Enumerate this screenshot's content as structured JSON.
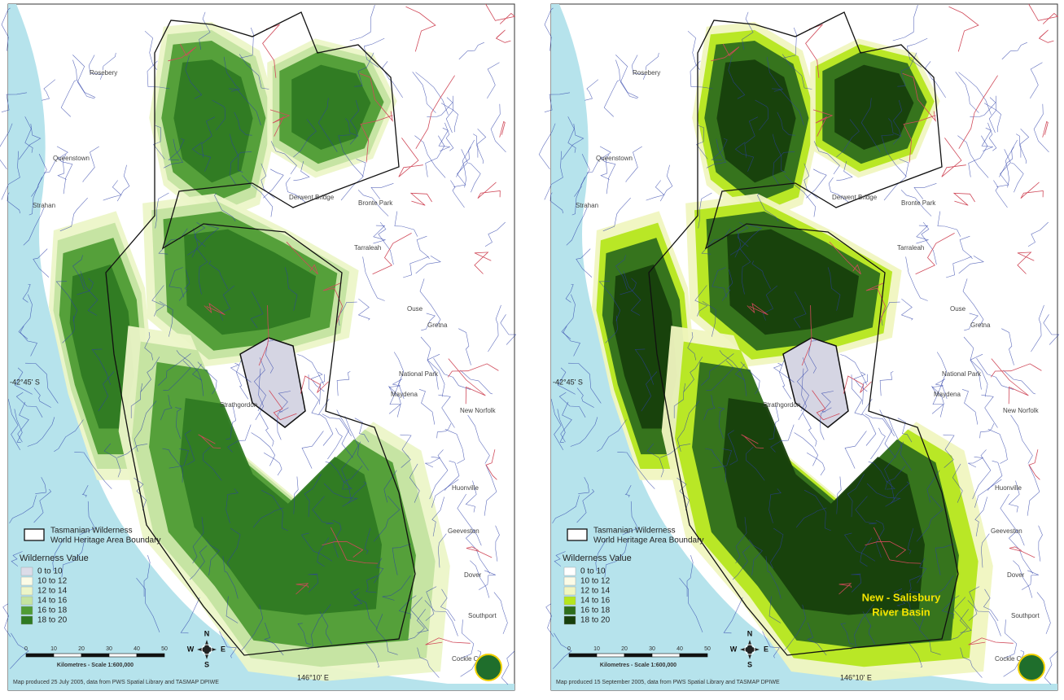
{
  "maps": [
    {
      "boundary_label": [
        "Tasmanian Wilderness",
        "World Heritage Area Boundary"
      ],
      "legend_title": "Wilderness Value",
      "legend_items": [
        {
          "label": "0 to 10",
          "color": "#dcdce8"
        },
        {
          "label": "10 to 12",
          "color": "#fbfbe6"
        },
        {
          "label": "12 to 14",
          "color": "#ecf5c8"
        },
        {
          "label": "14 to 16",
          "color": "#c4e3a0"
        },
        {
          "label": "16 to 18",
          "color": "#4f9c35"
        },
        {
          "label": "18 to 20",
          "color": "#2f7a22"
        }
      ],
      "scale_ticks": [
        "0",
        "10",
        "20",
        "30",
        "40",
        "50"
      ],
      "scale_title": "Kilometres - Scale 1:600,000",
      "compass": [
        "N",
        "W",
        "E",
        "S"
      ],
      "latitude": "-42°45' S",
      "longitude": "146°10' E",
      "credit": "Map produced 25 July 2005, data from PWS Spatial Library and TASMAP DPIWE",
      "places": [
        "Rosebery",
        "Queenstown",
        "Strahan",
        "Derwent Bridge",
        "Bronte Park",
        "Tarraleah",
        "Ouse",
        "Gretna",
        "National Park",
        "Maydena",
        "New Norfolk",
        "Strathgordon",
        "Huonville",
        "Geeveston",
        "Dover",
        "Southport",
        "Cockle Creek"
      ]
    },
    {
      "boundary_label": [
        "Tasmanian Wilderness",
        "World Heritage Area Boundary"
      ],
      "legend_title": "Wilderness Value",
      "legend_items": [
        {
          "label": "0 to 10",
          "color": "#ffffff"
        },
        {
          "label": "10 to 12",
          "color": "#fbfbe6"
        },
        {
          "label": "12 to 14",
          "color": "#f0f5c0"
        },
        {
          "label": "14 to 16",
          "color": "#b5e61d"
        },
        {
          "label": "16 to 18",
          "color": "#2e6e1c"
        },
        {
          "label": "18 to 20",
          "color": "#173f0c"
        }
      ],
      "scale_ticks": [
        "0",
        "10",
        "20",
        "30",
        "40",
        "50"
      ],
      "scale_title": "Kilometres - Scale 1:600,000",
      "compass": [
        "N",
        "W",
        "E",
        "S"
      ],
      "latitude": "-42°45' S",
      "longitude": "146°10' E",
      "credit": "Map produced 15 September 2005, data from PWS Spatial Library and TASMAP DPIWE",
      "annotation": [
        "New - Salisbury",
        "River Basin"
      ],
      "places": [
        "Rosebery",
        "Queenstown",
        "Strahan",
        "Derwent Bridge",
        "Bronte Park",
        "Tarraleah",
        "Ouse",
        "Gretna",
        "National Park",
        "Maydena",
        "New Norfolk",
        "Strathgordon",
        "Huonville",
        "Geeveston",
        "Dover",
        "Southport",
        "Cockle Creek"
      ]
    }
  ]
}
